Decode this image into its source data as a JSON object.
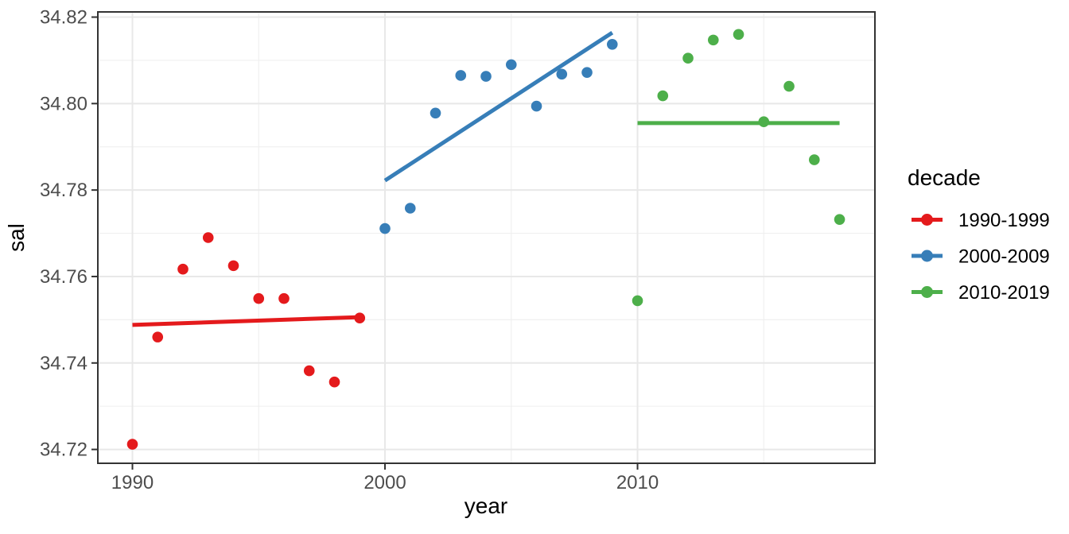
{
  "chart_data": {
    "type": "scatter",
    "title": "",
    "xlabel": "year",
    "ylabel": "sal",
    "legend_title": "decade",
    "legend_position": "right",
    "grid": true,
    "panel_bg": "#FFFFFF",
    "grid_color_major": "#E8E8E8",
    "grid_color_minor": "#F0F0F0",
    "panel_border_color": "#333333",
    "tick_text_color": "#4D4D4D",
    "xlim": [
      1988.63,
      2019.4
    ],
    "ylim": [
      34.7168,
      34.8212
    ],
    "x_ticks": [
      1990,
      2000,
      2010
    ],
    "x_tick_labels": [
      "1990",
      "2000",
      "2010"
    ],
    "x_minor_ticks": [
      1995,
      2005,
      2015
    ],
    "y_ticks": [
      34.72,
      34.74,
      34.76,
      34.78,
      34.8,
      34.82
    ],
    "y_tick_labels": [
      "34.72",
      "34.74",
      "34.76",
      "34.78",
      "34.80",
      "34.82"
    ],
    "y_minor_ticks": [
      34.73,
      34.75,
      34.77,
      34.79,
      34.81
    ],
    "series": [
      {
        "name": "1990-1999",
        "color": "#E41A1C",
        "x": [
          1990,
          1991,
          1992,
          1993,
          1994,
          1995,
          1996,
          1997,
          1998,
          1999
        ],
        "y": [
          34.7212,
          34.746,
          34.7617,
          34.769,
          34.7625,
          34.7549,
          34.7549,
          34.7382,
          34.7356,
          34.7504
        ],
        "trend": {
          "x": [
            1990,
            1999
          ],
          "y": [
            34.7488,
            34.7506
          ]
        }
      },
      {
        "name": "2000-2009",
        "color": "#377EB8",
        "x": [
          2000,
          2001,
          2002,
          2003,
          2004,
          2005,
          2006,
          2007,
          2008,
          2009
        ],
        "y": [
          34.7711,
          34.7758,
          34.7978,
          34.8065,
          34.8063,
          34.809,
          34.7994,
          34.8068,
          34.8072,
          34.8137
        ],
        "trend": {
          "x": [
            2000,
            2009
          ],
          "y": [
            34.7822,
            34.8164
          ]
        }
      },
      {
        "name": "2010-2019",
        "color": "#4DAF4A",
        "x": [
          2010,
          2011,
          2012,
          2013,
          2014,
          2015,
          2016,
          2017,
          2018
        ],
        "y": [
          34.7544,
          34.8018,
          34.8105,
          34.8147,
          34.816,
          34.7958,
          34.804,
          34.787,
          34.7732
        ],
        "trend": {
          "x": [
            2010,
            2018
          ],
          "y": [
            34.7955,
            34.7955
          ]
        }
      }
    ]
  }
}
